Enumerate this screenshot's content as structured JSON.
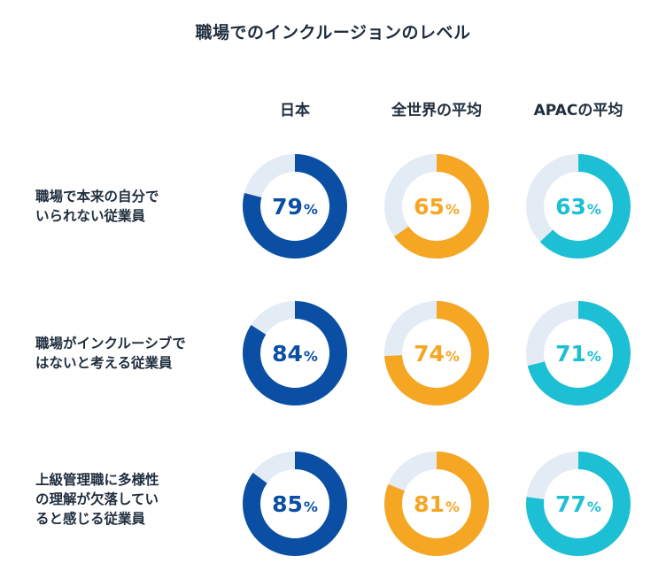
{
  "title": "職場でのインクルージョンのレベル",
  "columns": [
    "日本",
    "全世界の平均",
    "APACの平均"
  ],
  "rows": [
    "職場で本来の自分で\nいられない従業員",
    "職場がインクルーシブで\nはないと考える従業員",
    "上級管理職に多様性\nの理解が欠落してい\nると感じる従業員"
  ],
  "colors": {
    "japan": "#0a4fa3",
    "global": "#f5a623",
    "apac": "#1dbfd4",
    "track": "#e3ebf5"
  },
  "unit": "%",
  "chart_data": {
    "type": "donut",
    "title": "職場でのインクルージョンのレベル",
    "categories": [
      "職場で本来の自分でいられない従業員",
      "職場がインクルーシブではないと考える従業員",
      "上級管理職に多様性の理解が欠落していると感じる従業員"
    ],
    "series": [
      {
        "name": "日本",
        "values": [
          79,
          84,
          85
        ]
      },
      {
        "name": "全世界の平均",
        "values": [
          65,
          74,
          81
        ]
      },
      {
        "name": "APACの平均",
        "values": [
          63,
          71,
          77
        ]
      }
    ],
    "ylim": [
      0,
      100
    ]
  }
}
